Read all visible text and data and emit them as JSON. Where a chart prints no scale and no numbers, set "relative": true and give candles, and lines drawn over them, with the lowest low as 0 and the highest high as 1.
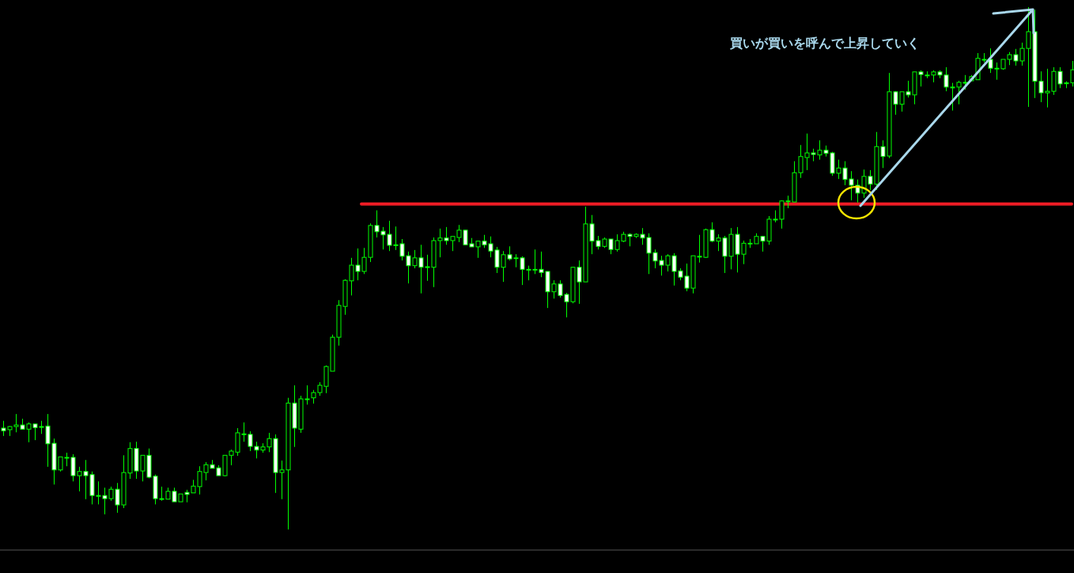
{
  "chart_data": {
    "type": "candlestick",
    "relative": true,
    "categories": [
      null,
      null,
      null,
      null,
      null,
      null,
      null,
      null,
      null,
      null,
      null,
      null,
      null,
      null,
      null,
      null,
      null,
      null,
      null,
      null,
      null,
      null,
      null,
      null,
      null,
      null,
      null,
      null,
      null,
      null,
      null,
      null,
      null,
      null,
      null,
      null,
      null,
      null,
      null,
      null,
      null,
      null,
      null,
      null,
      null,
      null,
      null,
      null,
      null,
      null,
      null,
      null,
      null,
      null,
      null,
      null,
      null,
      null,
      null,
      null,
      null,
      null,
      null,
      null,
      null,
      null,
      null,
      null,
      null,
      null,
      null,
      null,
      null,
      null,
      null,
      null,
      null,
      null,
      null,
      null,
      null,
      null,
      null,
      null,
      null,
      null,
      null,
      null,
      null,
      null,
      null,
      null,
      null,
      null,
      null,
      null,
      null,
      null,
      null,
      null,
      null,
      null,
      null,
      null,
      null,
      null,
      null,
      null,
      null,
      null,
      null,
      null,
      null,
      null,
      null,
      null,
      null,
      null,
      null,
      null,
      null,
      null,
      null,
      null,
      null,
      null,
      null,
      null,
      null,
      null,
      null,
      null,
      null,
      null,
      null,
      null,
      null,
      null,
      null,
      null,
      null,
      null,
      null,
      null,
      null,
      null,
      null,
      null,
      null,
      null,
      null,
      null,
      null,
      null,
      null,
      null,
      null,
      null,
      null,
      null,
      null,
      null,
      null,
      null,
      null,
      null,
      null,
      null,
      null,
      null
    ],
    "series": [
      {
        "color": "#00ff00",
        "ohlc": [
          [
            0.194,
            0.208,
            0.179,
            0.189
          ],
          [
            0.191,
            0.198,
            0.179,
            0.197
          ],
          [
            0.197,
            0.221,
            0.186,
            0.2
          ],
          [
            0.2,
            0.212,
            0.192,
            0.192
          ],
          [
            0.192,
            0.205,
            0.167,
            0.202
          ],
          [
            0.202,
            0.202,
            0.171,
            0.195
          ],
          [
            0.197,
            0.208,
            0.183,
            0.197
          ],
          [
            0.198,
            0.221,
            0.12,
            0.164
          ],
          [
            0.165,
            0.174,
            0.086,
            0.114
          ],
          [
            0.114,
            0.139,
            0.111,
            0.139
          ],
          [
            0.138,
            0.147,
            0.121,
            0.138
          ],
          [
            0.138,
            0.144,
            0.092,
            0.103
          ],
          [
            0.103,
            0.12,
            0.073,
            0.111
          ],
          [
            0.111,
            0.133,
            0.058,
            0.103
          ],
          [
            0.105,
            0.111,
            0.048,
            0.065
          ],
          [
            0.065,
            0.092,
            0.048,
            0.065
          ],
          [
            0.065,
            0.08,
            0.029,
            0.059
          ],
          [
            0.059,
            0.082,
            0.055,
            0.077
          ],
          [
            0.077,
            0.089,
            0.032,
            0.047
          ],
          [
            0.047,
            0.142,
            0.041,
            0.109
          ],
          [
            0.108,
            0.167,
            0.097,
            0.155
          ],
          [
            0.155,
            0.168,
            0.097,
            0.112
          ],
          [
            0.112,
            0.142,
            0.092,
            0.142
          ],
          [
            0.142,
            0.155,
            0.098,
            0.1
          ],
          [
            0.102,
            0.105,
            0.048,
            0.059
          ],
          [
            0.059,
            0.082,
            0.055,
            0.059
          ],
          [
            0.058,
            0.08,
            0.058,
            0.073
          ],
          [
            0.073,
            0.08,
            0.053,
            0.053
          ],
          [
            0.053,
            0.068,
            0.053,
            0.068
          ],
          [
            0.071,
            0.076,
            0.052,
            0.067
          ],
          [
            0.07,
            0.095,
            0.07,
            0.083
          ],
          [
            0.082,
            0.121,
            0.067,
            0.111
          ],
          [
            0.109,
            0.129,
            0.094,
            0.124
          ],
          [
            0.124,
            0.133,
            0.117,
            0.117
          ],
          [
            0.118,
            0.123,
            0.103,
            0.103
          ],
          [
            0.103,
            0.142,
            0.102,
            0.142
          ],
          [
            0.142,
            0.153,
            0.123,
            0.15
          ],
          [
            0.148,
            0.194,
            0.141,
            0.185
          ],
          [
            0.183,
            0.205,
            0.168,
            0.183
          ],
          [
            0.182,
            0.188,
            0.15,
            0.159
          ],
          [
            0.159,
            0.168,
            0.136,
            0.152
          ],
          [
            0.152,
            0.165,
            0.147,
            0.158
          ],
          [
            0.158,
            0.185,
            0.148,
            0.174
          ],
          [
            0.174,
            0.182,
            0.07,
            0.109
          ],
          [
            0.109,
            0.132,
            0.058,
            0.114
          ],
          [
            0.114,
            0.252,
            0,
            0.242
          ],
          [
            0.242,
            0.276,
            0.158,
            0.194
          ],
          [
            0.192,
            0.256,
            0.185,
            0.25
          ],
          [
            0.25,
            0.276,
            0.239,
            0.25
          ],
          [
            0.252,
            0.267,
            0.241,
            0.262
          ],
          [
            0.262,
            0.282,
            0.256,
            0.276
          ],
          [
            0.274,
            0.314,
            0.261,
            0.312
          ],
          [
            0.303,
            0.373,
            0.303,
            0.368
          ],
          [
            0.368,
            0.439,
            0.352,
            0.429
          ],
          [
            0.427,
            0.479,
            0.411,
            0.477
          ],
          [
            0.476,
            0.52,
            0.448,
            0.506
          ],
          [
            0.506,
            0.538,
            0.477,
            0.494
          ],
          [
            0.494,
            0.539,
            0.489,
            0.521
          ],
          [
            0.521,
            0.586,
            0.512,
            0.582
          ],
          [
            0.582,
            0.611,
            0.559,
            0.57
          ],
          [
            0.571,
            0.579,
            0.536,
            0.564
          ],
          [
            0.565,
            0.591,
            0.533,
            0.544
          ],
          [
            0.545,
            0.58,
            0.535,
            0.545
          ],
          [
            0.547,
            0.556,
            0.515,
            0.523
          ],
          [
            0.524,
            0.532,
            0.471,
            0.505
          ],
          [
            0.505,
            0.535,
            0.5,
            0.52
          ],
          [
            0.52,
            0.545,
            0.452,
            0.502
          ],
          [
            0.503,
            0.526,
            0.476,
            0.503
          ],
          [
            0.502,
            0.559,
            0.464,
            0.553
          ],
          [
            0.553,
            0.576,
            0.521,
            0.558
          ],
          [
            0.558,
            0.579,
            0.545,
            0.553
          ],
          [
            0.553,
            0.561,
            0.533,
            0.561
          ],
          [
            0.559,
            0.583,
            0.55,
            0.573
          ],
          [
            0.573,
            0.573,
            0.545,
            0.545
          ],
          [
            0.547,
            0.558,
            0.541,
            0.541
          ],
          [
            0.541,
            0.552,
            0.52,
            0.552
          ],
          [
            0.552,
            0.564,
            0.539,
            0.545
          ],
          [
            0.547,
            0.561,
            0.521,
            0.533
          ],
          [
            0.535,
            0.541,
            0.491,
            0.502
          ],
          [
            0.502,
            0.533,
            0.474,
            0.526
          ],
          [
            0.526,
            0.542,
            0.515,
            0.518
          ],
          [
            0.52,
            0.527,
            0.502,
            0.52
          ],
          [
            0.52,
            0.523,
            0.468,
            0.498
          ],
          [
            0.498,
            0.505,
            0.477,
            0.498
          ],
          [
            0.498,
            0.536,
            0.489,
            0.498
          ],
          [
            0.498,
            0.532,
            0.483,
            0.492
          ],
          [
            0.494,
            0.494,
            0.424,
            0.455
          ],
          [
            0.455,
            0.477,
            0.442,
            0.47
          ],
          [
            0.47,
            0.477,
            0.444,
            0.448
          ],
          [
            0.45,
            0.453,
            0.406,
            0.436
          ],
          [
            0.436,
            0.502,
            0.433,
            0.502
          ],
          [
            0.502,
            0.515,
            0.432,
            0.474
          ],
          [
            0.474,
            0.618,
            0.474,
            0.585
          ],
          [
            0.585,
            0.602,
            0.527,
            0.552
          ],
          [
            0.553,
            0.562,
            0.536,
            0.542
          ],
          [
            0.542,
            0.559,
            0.539,
            0.556
          ],
          [
            0.556,
            0.556,
            0.527,
            0.536
          ],
          [
            0.536,
            0.565,
            0.532,
            0.553
          ],
          [
            0.552,
            0.57,
            0.55,
            0.565
          ],
          [
            0.565,
            0.567,
            0.542,
            0.561
          ],
          [
            0.561,
            0.567,
            0.558,
            0.565
          ],
          [
            0.565,
            0.577,
            0.545,
            0.558
          ],
          [
            0.559,
            0.567,
            0.489,
            0.529
          ],
          [
            0.53,
            0.536,
            0.5,
            0.514
          ],
          [
            0.515,
            0.524,
            0.486,
            0.506
          ],
          [
            0.506,
            0.527,
            0.494,
            0.524
          ],
          [
            0.524,
            0.529,
            0.467,
            0.494
          ],
          [
            0.495,
            0.5,
            0.477,
            0.483
          ],
          [
            0.485,
            0.509,
            0.456,
            0.462
          ],
          [
            0.462,
            0.524,
            0.452,
            0.524
          ],
          [
            0.523,
            0.564,
            0.511,
            0.523
          ],
          [
            0.521,
            0.576,
            0.52,
            0.574
          ],
          [
            0.574,
            0.588,
            0.55,
            0.552
          ],
          [
            0.552,
            0.565,
            0.533,
            0.558
          ],
          [
            0.558,
            0.562,
            0.491,
            0.523
          ],
          [
            0.523,
            0.577,
            0.498,
            0.565
          ],
          [
            0.565,
            0.579,
            0.492,
            0.527
          ],
          [
            0.527,
            0.553,
            0.508,
            0.548
          ],
          [
            0.548,
            0.556,
            0.539,
            0.548
          ],
          [
            0.547,
            0.567,
            0.547,
            0.561
          ],
          [
            0.561,
            0.562,
            0.532,
            0.552
          ],
          [
            0.552,
            0.6,
            0.545,
            0.594
          ],
          [
            0.594,
            0.611,
            0.588,
            0.594
          ],
          [
            0.594,
            0.63,
            0.576,
            0.629
          ],
          [
            0.629,
            0.639,
            0.615,
            0.629
          ],
          [
            0.627,
            0.705,
            0.627,
            0.683
          ],
          [
            0.683,
            0.736,
            0.673,
            0.714
          ],
          [
            0.712,
            0.758,
            0.688,
            0.721
          ],
          [
            0.721,
            0.729,
            0.705,
            0.718
          ],
          [
            0.717,
            0.745,
            0.708,
            0.726
          ],
          [
            0.726,
            0.735,
            0.714,
            0.72
          ],
          [
            0.721,
            0.723,
            0.677,
            0.682
          ],
          [
            0.682,
            0.708,
            0.671,
            0.692
          ],
          [
            0.692,
            0.705,
            0.659,
            0.67
          ],
          [
            0.671,
            0.686,
            0.63,
            0.659
          ],
          [
            0.659,
            0.67,
            0.626,
            0.644
          ],
          [
            0.644,
            0.689,
            0.635,
            0.676
          ],
          [
            0.676,
            0.688,
            0.65,
            0.661
          ],
          [
            0.661,
            0.761,
            0.65,
            0.733
          ],
          [
            0.733,
            0.745,
            0.692,
            0.714
          ],
          [
            0.715,
            0.874,
            0.711,
            0.838
          ],
          [
            0.838,
            0.839,
            0.794,
            0.814
          ],
          [
            0.814,
            0.838,
            0.8,
            0.838
          ],
          [
            0.838,
            0.859,
            0.827,
            0.832
          ],
          [
            0.832,
            0.876,
            0.814,
            0.876
          ],
          [
            0.876,
            0.879,
            0.848,
            0.871
          ],
          [
            0.87,
            0.877,
            0.864,
            0.87
          ],
          [
            0.87,
            0.879,
            0.856,
            0.876
          ],
          [
            0.876,
            0.879,
            0.864,
            0.87
          ],
          [
            0.87,
            0.885,
            0.839,
            0.847
          ],
          [
            0.847,
            0.855,
            0.802,
            0.847
          ],
          [
            0.847,
            0.859,
            0.814,
            0.856
          ],
          [
            0.856,
            0.87,
            0.842,
            0.856
          ],
          [
            0.859,
            0.87,
            0.858,
            0.867
          ],
          [
            0.861,
            0.912,
            0.861,
            0.902
          ],
          [
            0.9,
            0.912,
            0.894,
            0.9
          ],
          [
            0.9,
            0.921,
            0.874,
            0.883
          ],
          [
            0.883,
            0.894,
            0.861,
            0.883
          ],
          [
            0.882,
            0.9,
            0.88,
            0.9
          ],
          [
            0.9,
            0.914,
            0.889,
            0.909
          ],
          [
            0.909,
            0.92,
            0.888,
            0.897
          ],
          [
            0.897,
            0.932,
            0.888,
            0.921
          ],
          [
            0.921,
            1,
            0.809,
            0.953
          ],
          [
            0.953,
            0.995,
            0.826,
            0.858
          ],
          [
            0.858,
            0.877,
            0.818,
            0.836
          ],
          [
            0.836,
            0.882,
            0.808,
            0.839
          ],
          [
            0.839,
            0.885,
            0.832,
            0.877
          ],
          [
            0.877,
            0.885,
            0.845,
            0.853
          ],
          [
            0.855,
            0.858,
            0.845,
            0.855
          ],
          [
            0.855,
            0.897,
            0.848,
            0.88
          ]
        ]
      }
    ],
    "ref_lines": [
      {
        "axis": "y",
        "value": 0.623,
        "color": "#ee1c25"
      }
    ],
    "annotations": [
      "買いが買いを呼んで上昇していく"
    ]
  }
}
